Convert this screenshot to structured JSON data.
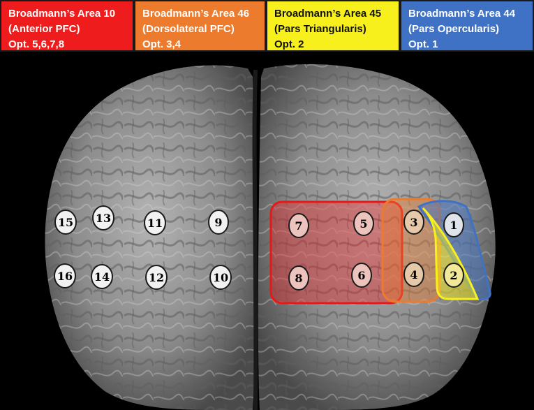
{
  "legend": [
    {
      "title": "Broadmann’s Area 10",
      "subtitle": "(Anterior PFC)",
      "options": "Opt. 5,6,7,8",
      "color": "#ee1c1c"
    },
    {
      "title": "Broadmann’s Area 46",
      "subtitle": "(Dorsolateral PFC)",
      "options": "Opt. 3,4",
      "color": "#ec7b2e"
    },
    {
      "title": "Broadmann’s Area 45",
      "subtitle": "(Pars Triangularis)",
      "options": "Opt. 2",
      "color": "#f7f01c"
    },
    {
      "title": "Broadmann’s Area 44",
      "subtitle": "(Pars Opercularis)",
      "options": "Opt. 1",
      "color": "#3f72c4"
    }
  ],
  "electrodes": [
    "1",
    "2",
    "3",
    "4",
    "5",
    "6",
    "7",
    "8",
    "9",
    "10",
    "11",
    "12",
    "13",
    "14",
    "15",
    "16"
  ],
  "colors": {
    "background": "#000000",
    "brain": "#8e8e8e",
    "area10": "#ee1c1c",
    "area46": "#ec7b2e",
    "area45": "#f7f01c",
    "area44": "#3f72c4"
  }
}
